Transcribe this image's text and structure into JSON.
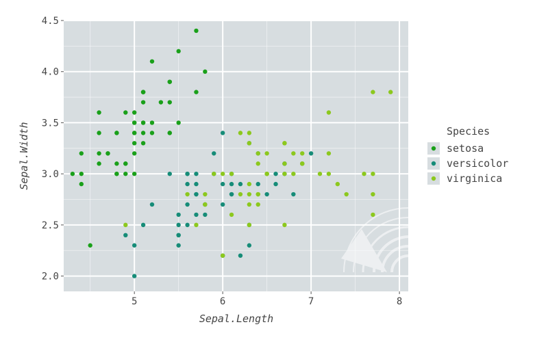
{
  "chart_data": {
    "type": "scatter",
    "xlabel": "Sepal.Length",
    "ylabel": "Sepal.Width",
    "xlim": [
      4.2,
      8.1
    ],
    "ylim": [
      1.85,
      4.5
    ],
    "x_ticks": [
      5,
      6,
      7,
      8
    ],
    "y_ticks": [
      2.0,
      2.5,
      3.0,
      3.5,
      4.0,
      4.5
    ],
    "x_tick_labels": [
      "5",
      "6",
      "7",
      "8"
    ],
    "y_tick_labels": [
      "2.0",
      "2.5",
      "3.0",
      "3.5",
      "4.0",
      "4.5"
    ],
    "minor_x": [
      4.5,
      5.5,
      6.5,
      7.5
    ],
    "minor_y": [
      2.25,
      2.75,
      3.25,
      3.75,
      4.25
    ],
    "grid": true,
    "legend": {
      "title": "Species",
      "position": "right"
    },
    "colors": {
      "panel": "#d7dde0",
      "grid": "#ffffff",
      "setosa": "#1aa01a",
      "versicolor": "#168c78",
      "virginica": "#8cc81e"
    },
    "series": [
      {
        "name": "setosa",
        "points": [
          [
            5.1,
            3.5
          ],
          [
            4.9,
            3.0
          ],
          [
            4.7,
            3.2
          ],
          [
            4.6,
            3.1
          ],
          [
            5.0,
            3.6
          ],
          [
            5.4,
            3.9
          ],
          [
            4.6,
            3.4
          ],
          [
            5.0,
            3.4
          ],
          [
            4.4,
            2.9
          ],
          [
            4.9,
            3.1
          ],
          [
            5.4,
            3.7
          ],
          [
            4.8,
            3.4
          ],
          [
            4.8,
            3.0
          ],
          [
            4.3,
            3.0
          ],
          [
            5.8,
            4.0
          ],
          [
            5.7,
            4.4
          ],
          [
            5.4,
            3.9
          ],
          [
            5.1,
            3.5
          ],
          [
            5.7,
            3.8
          ],
          [
            5.1,
            3.8
          ],
          [
            5.4,
            3.4
          ],
          [
            5.1,
            3.7
          ],
          [
            4.6,
            3.6
          ],
          [
            5.1,
            3.3
          ],
          [
            4.8,
            3.4
          ],
          [
            5.0,
            3.0
          ],
          [
            5.0,
            3.4
          ],
          [
            5.2,
            3.5
          ],
          [
            5.2,
            3.4
          ],
          [
            4.7,
            3.2
          ],
          [
            4.8,
            3.1
          ],
          [
            5.4,
            3.4
          ],
          [
            5.2,
            4.1
          ],
          [
            5.5,
            4.2
          ],
          [
            4.9,
            3.1
          ],
          [
            5.0,
            3.2
          ],
          [
            5.5,
            3.5
          ],
          [
            4.9,
            3.6
          ],
          [
            4.4,
            3.0
          ],
          [
            5.1,
            3.4
          ],
          [
            5.0,
            3.5
          ],
          [
            4.5,
            2.3
          ],
          [
            4.4,
            3.2
          ],
          [
            5.0,
            3.5
          ],
          [
            5.1,
            3.8
          ],
          [
            4.8,
            3.0
          ],
          [
            5.1,
            3.8
          ],
          [
            4.6,
            3.2
          ],
          [
            5.3,
            3.7
          ],
          [
            5.0,
            3.3
          ]
        ]
      },
      {
        "name": "versicolor",
        "points": [
          [
            7.0,
            3.2
          ],
          [
            6.4,
            3.2
          ],
          [
            6.9,
            3.1
          ],
          [
            5.5,
            2.3
          ],
          [
            6.5,
            2.8
          ],
          [
            5.7,
            2.8
          ],
          [
            6.3,
            3.3
          ],
          [
            4.9,
            2.4
          ],
          [
            6.6,
            2.9
          ],
          [
            5.2,
            2.7
          ],
          [
            5.0,
            2.0
          ],
          [
            5.9,
            3.0
          ],
          [
            6.0,
            2.2
          ],
          [
            6.1,
            2.9
          ],
          [
            5.6,
            2.9
          ],
          [
            6.7,
            3.1
          ],
          [
            5.6,
            3.0
          ],
          [
            5.8,
            2.7
          ],
          [
            6.2,
            2.2
          ],
          [
            5.6,
            2.5
          ],
          [
            5.9,
            3.2
          ],
          [
            6.1,
            2.8
          ],
          [
            6.3,
            2.5
          ],
          [
            6.1,
            2.8
          ],
          [
            6.4,
            2.9
          ],
          [
            6.6,
            3.0
          ],
          [
            6.8,
            2.8
          ],
          [
            6.7,
            3.0
          ],
          [
            6.0,
            2.9
          ],
          [
            5.7,
            2.6
          ],
          [
            5.5,
            2.4
          ],
          [
            5.5,
            2.4
          ],
          [
            5.8,
            2.7
          ],
          [
            6.0,
            2.7
          ],
          [
            5.4,
            3.0
          ],
          [
            6.0,
            3.4
          ],
          [
            6.7,
            3.1
          ],
          [
            6.3,
            2.3
          ],
          [
            5.6,
            3.0
          ],
          [
            5.5,
            2.5
          ],
          [
            5.5,
            2.6
          ],
          [
            6.1,
            3.0
          ],
          [
            5.8,
            2.6
          ],
          [
            5.0,
            2.3
          ],
          [
            5.6,
            2.7
          ],
          [
            5.7,
            3.0
          ],
          [
            5.7,
            2.9
          ],
          [
            6.2,
            2.9
          ],
          [
            5.1,
            2.5
          ],
          [
            5.7,
            2.8
          ]
        ]
      },
      {
        "name": "virginica",
        "points": [
          [
            6.3,
            3.3
          ],
          [
            5.8,
            2.7
          ],
          [
            7.1,
            3.0
          ],
          [
            6.3,
            2.9
          ],
          [
            6.5,
            3.0
          ],
          [
            7.6,
            3.0
          ],
          [
            4.9,
            2.5
          ],
          [
            7.3,
            2.9
          ],
          [
            6.7,
            2.5
          ],
          [
            7.2,
            3.6
          ],
          [
            6.5,
            3.2
          ],
          [
            6.4,
            2.7
          ],
          [
            6.8,
            3.0
          ],
          [
            5.7,
            2.5
          ],
          [
            5.8,
            2.8
          ],
          [
            6.4,
            3.2
          ],
          [
            6.5,
            3.0
          ],
          [
            7.7,
            3.8
          ],
          [
            7.7,
            2.6
          ],
          [
            6.0,
            2.2
          ],
          [
            6.9,
            3.2
          ],
          [
            5.6,
            2.8
          ],
          [
            7.7,
            2.8
          ],
          [
            6.3,
            2.7
          ],
          [
            6.7,
            3.3
          ],
          [
            7.2,
            3.2
          ],
          [
            6.2,
            2.8
          ],
          [
            6.1,
            3.0
          ],
          [
            6.4,
            2.8
          ],
          [
            7.2,
            3.0
          ],
          [
            7.4,
            2.8
          ],
          [
            7.9,
            3.8
          ],
          [
            6.4,
            2.8
          ],
          [
            6.3,
            2.8
          ],
          [
            6.1,
            2.6
          ],
          [
            7.7,
            3.0
          ],
          [
            6.3,
            3.4
          ],
          [
            6.4,
            3.1
          ],
          [
            6.0,
            3.0
          ],
          [
            6.9,
            3.1
          ],
          [
            6.7,
            3.1
          ],
          [
            6.9,
            3.1
          ],
          [
            5.8,
            2.7
          ],
          [
            6.8,
            3.2
          ],
          [
            6.7,
            3.3
          ],
          [
            6.7,
            3.0
          ],
          [
            6.3,
            2.5
          ],
          [
            6.5,
            3.0
          ],
          [
            6.2,
            3.4
          ],
          [
            5.9,
            3.0
          ]
        ]
      }
    ]
  }
}
